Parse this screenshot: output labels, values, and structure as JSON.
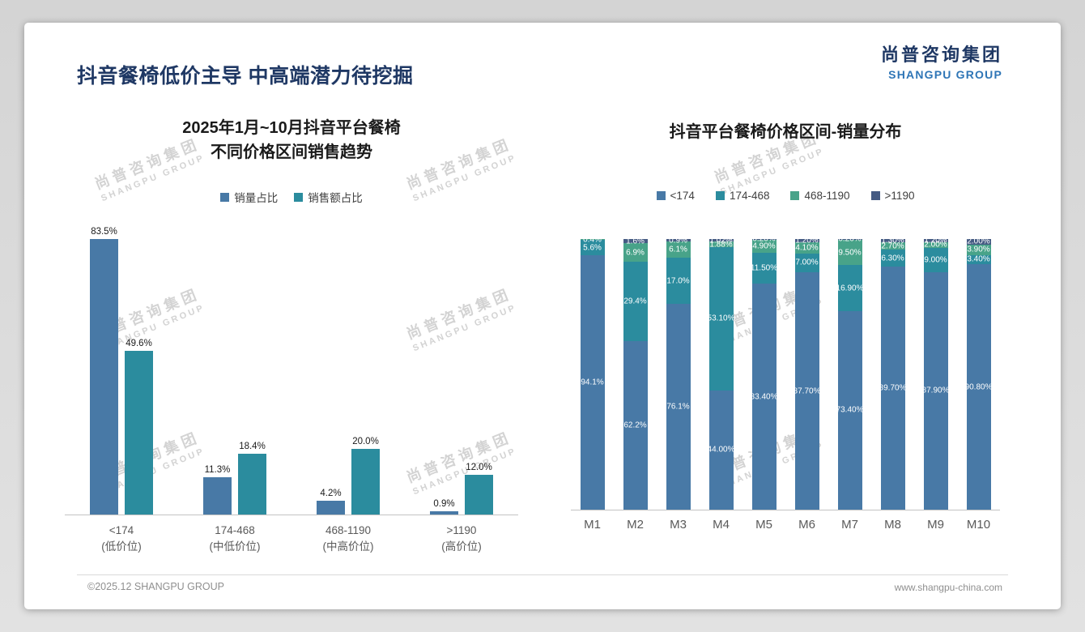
{
  "page": {
    "title": "抖音餐椅低价主导 中高端潜力待挖掘",
    "logo": {
      "cn": "尚普咨询集团",
      "en": "SHANGPU GROUP"
    },
    "watermark": {
      "cn": "尚普咨询集团",
      "en": "SHANGPU GROUP"
    },
    "footer": {
      "left": "©2025.12 SHANGPU GROUP",
      "right": "www.shangpu-china.com"
    }
  },
  "colors": {
    "title_navy": "#1f3864",
    "logo_blue": "#2e75b6",
    "series_blue": "#4879a6",
    "series_teal": "#2b8c9e",
    "series_green": "#48a389",
    "series_navy": "#455b83"
  },
  "chart_data": [
    {
      "type": "bar",
      "title": "2025年1月~10月抖音平台餐椅 不同价格区间销售趋势",
      "title_lines": [
        "2025年1月~10月抖音平台餐椅",
        "不同价格区间销售趋势"
      ],
      "xlabel": "",
      "ylabel": "",
      "unit": "%",
      "ylim": [
        0,
        100
      ],
      "grid": false,
      "legend_position": "top",
      "categories": [
        {
          "label": "<174",
          "sub": "(低价位)"
        },
        {
          "label": "174-468",
          "sub": "(中低价位)"
        },
        {
          "label": "468-1190",
          "sub": "(中高价位)"
        },
        {
          "label": ">1190",
          "sub": "(高价位)"
        }
      ],
      "series": [
        {
          "name": "销量占比",
          "color": "#4879a6",
          "values": [
            83.5,
            11.3,
            4.2,
            0.9
          ],
          "labels": [
            "83.5%",
            "11.3%",
            "4.2%",
            "0.9%"
          ]
        },
        {
          "name": "销售额占比",
          "color": "#2b8c9e",
          "values": [
            49.6,
            18.4,
            20.0,
            12.0
          ],
          "labels": [
            "49.6%",
            "18.4%",
            "20.0%",
            "12.0%"
          ]
        }
      ]
    },
    {
      "type": "stacked-bar",
      "title": "抖音平台餐椅价格区间-销量分布",
      "xlabel": "",
      "ylabel": "",
      "unit": "%",
      "ylim": [
        0,
        100
      ],
      "grid": false,
      "legend_position": "top",
      "categories": [
        "M1",
        "M2",
        "M3",
        "M4",
        "M5",
        "M6",
        "M7",
        "M8",
        "M9",
        "M10"
      ],
      "series": [
        {
          "name": "<174",
          "color": "#4879a6",
          "values": [
            94.1,
            62.2,
            76.1,
            44.0,
            83.4,
            87.7,
            73.4,
            89.7,
            87.9,
            90.8
          ],
          "labels": [
            "94.1%",
            "62.2%",
            "76.1%",
            "44.00%",
            "83.40%",
            "87.70%",
            "73.40%",
            "89.70%",
            "87.90%",
            "90.80%"
          ]
        },
        {
          "name": "174-468",
          "color": "#2b8c9e",
          "values": [
            5.6,
            29.4,
            17.0,
            53.1,
            11.5,
            7.0,
            16.9,
            6.3,
            9.0,
            3.4
          ],
          "labels": [
            "5.6%",
            "29.4%",
            "17.0%",
            "53.10%",
            "11.50%",
            "7.00%",
            "16.90%",
            "6.30%",
            "9.00%",
            "3.40%"
          ]
        },
        {
          "name": "468-1190",
          "color": "#48a389",
          "values": [
            0.4,
            6.9,
            6.1,
            1.88,
            4.9,
            4.1,
            9.5,
            2.7,
            2.0,
            3.9
          ],
          "labels": [
            "0.4%",
            "6.9%",
            "6.1%",
            "1.88%",
            "4.90%",
            "4.10%",
            "9.50%",
            "2.70%",
            "2.00%",
            "3.90%"
          ]
        },
        {
          "name": ">1190",
          "color": "#455b83",
          "values": [
            0.0,
            1.6,
            0.9,
            1.02,
            0.2,
            1.2,
            0.2,
            1.3,
            1.2,
            2.0
          ],
          "labels": [
            "",
            "1.6%",
            "0.9%",
            "1.02%",
            "0.20%",
            "1.20%",
            "0.20%",
            "1.30%",
            "1.20%",
            "2.00%"
          ]
        }
      ]
    }
  ]
}
